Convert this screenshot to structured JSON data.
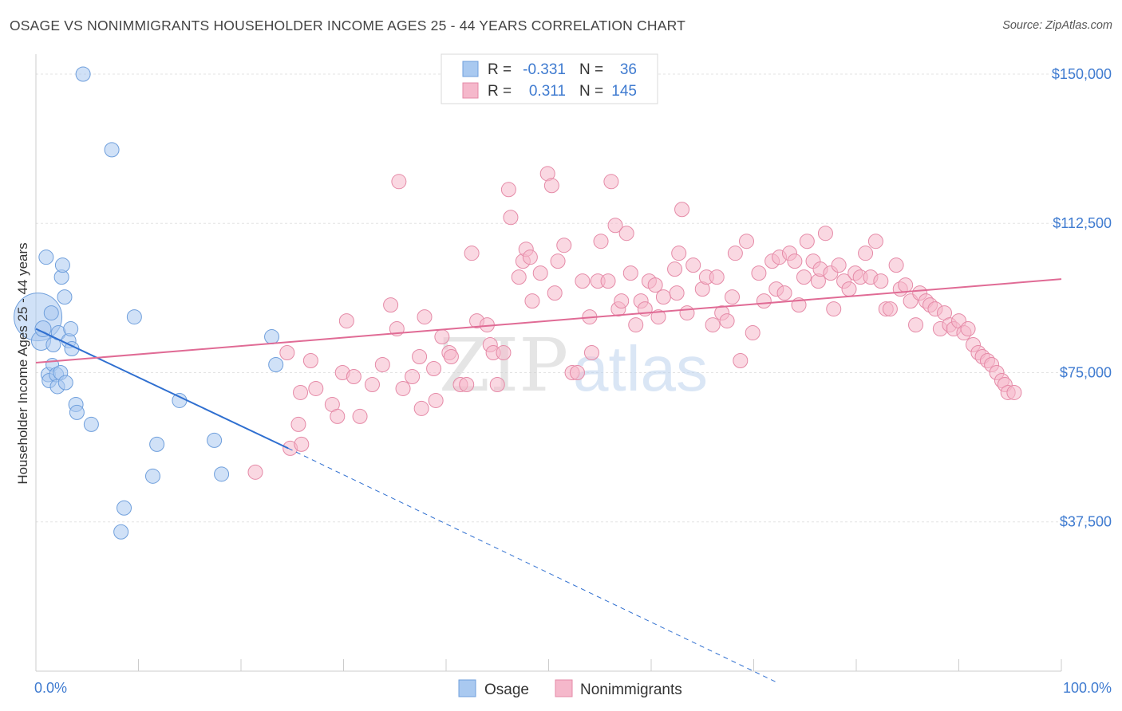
{
  "title": "OSAGE VS NONIMMIGRANTS HOUSEHOLDER INCOME AGES 25 - 44 YEARS CORRELATION CHART",
  "source": "Source: ZipAtlas.com",
  "watermark": {
    "zip": "ZIP",
    "atlas": "atlas"
  },
  "legend": {
    "rows": [
      {
        "r_label": "R =",
        "r_value": "-0.331",
        "n_label": "N =",
        "n_value": "36",
        "color": "#a9c9f0"
      },
      {
        "r_label": "R =",
        "r_value": "0.311",
        "n_label": "N =",
        "n_value": "145",
        "color": "#f5b8cb"
      }
    ]
  },
  "bottom_legend": [
    {
      "label": "Osage",
      "color": "#a9c9f0"
    },
    {
      "label": "Nonimmigrants",
      "color": "#f5b8cb"
    }
  ],
  "chart_data": {
    "type": "scatter",
    "title": "OSAGE VS NONIMMIGRANTS HOUSEHOLDER INCOME AGES 25 - 44 YEARS CORRELATION CHART",
    "xlabel": "",
    "ylabel": "Householder Income Ages 25 - 44 years",
    "xlim": [
      0,
      100
    ],
    "ylim": [
      0,
      153000
    ],
    "x_tick_labels": [
      "0.0%",
      "100.0%"
    ],
    "y_ticks": [
      37500,
      75000,
      112500,
      150000
    ],
    "y_tick_labels": [
      "$37,500",
      "$75,000",
      "$112,500",
      "$150,000"
    ],
    "grid": true,
    "series": [
      {
        "name": "Osage",
        "color": "#a9c9f0",
        "stroke": "#6f9fdc",
        "trend_color": "#2f6fd0",
        "trend": {
          "x0": 0,
          "y0": 86000,
          "x1": 24.6,
          "y1": 56000,
          "dash_x1": 72.4,
          "dash_y1": -3000
        },
        "points": [
          [
            0.2,
            89000,
            30
          ],
          [
            0.5,
            83000,
            12
          ],
          [
            0.7,
            86000,
            10
          ],
          [
            1.0,
            104000,
            9
          ],
          [
            1.2,
            74500,
            9
          ],
          [
            1.3,
            73000,
            9
          ],
          [
            1.5,
            90000,
            9
          ],
          [
            1.6,
            77000,
            8
          ],
          [
            1.7,
            82000,
            9
          ],
          [
            2.0,
            74500,
            9
          ],
          [
            2.1,
            71500,
            9
          ],
          [
            2.2,
            85000,
            9
          ],
          [
            2.4,
            75000,
            9
          ],
          [
            2.5,
            99000,
            9
          ],
          [
            2.6,
            102000,
            9
          ],
          [
            2.8,
            94000,
            9
          ],
          [
            2.9,
            72500,
            9
          ],
          [
            3.2,
            83000,
            9
          ],
          [
            3.4,
            86000,
            9
          ],
          [
            3.5,
            81000,
            9
          ],
          [
            3.9,
            67000,
            9
          ],
          [
            4.0,
            65000,
            9
          ],
          [
            4.6,
            150000,
            9
          ],
          [
            5.4,
            62000,
            9
          ],
          [
            7.4,
            131000,
            9
          ],
          [
            8.3,
            35000,
            9
          ],
          [
            8.6,
            41000,
            9
          ],
          [
            9.6,
            89000,
            9
          ],
          [
            11.4,
            49000,
            9
          ],
          [
            11.8,
            57000,
            9
          ],
          [
            14.0,
            68000,
            9
          ],
          [
            17.4,
            58000,
            9
          ],
          [
            18.1,
            49500,
            9
          ],
          [
            23.0,
            84000,
            9
          ],
          [
            23.4,
            77000,
            9
          ]
        ]
      },
      {
        "name": "Nonimmigrants",
        "color": "#f5b8cb",
        "stroke": "#e58aa7",
        "trend_color": "#e06b95",
        "trend": {
          "x0": 0,
          "y0": 77500,
          "x1": 100,
          "y1": 98500
        },
        "points": [
          [
            21.4,
            50000
          ],
          [
            24.8,
            56000
          ],
          [
            25.9,
            57000
          ],
          [
            25.6,
            62000
          ],
          [
            24.5,
            80000
          ],
          [
            25.8,
            70000
          ],
          [
            26.8,
            78000
          ],
          [
            27.3,
            71000
          ],
          [
            28.9,
            67000
          ],
          [
            29.4,
            64000
          ],
          [
            29.9,
            75000
          ],
          [
            31.0,
            74000
          ],
          [
            30.3,
            88000
          ],
          [
            31.6,
            64000
          ],
          [
            32.8,
            72000
          ],
          [
            33.8,
            77000
          ],
          [
            34.6,
            92000
          ],
          [
            35.2,
            86000
          ],
          [
            35.4,
            123000
          ],
          [
            35.8,
            71000
          ],
          [
            36.7,
            74000
          ],
          [
            37.4,
            79000
          ],
          [
            37.6,
            66000
          ],
          [
            37.9,
            89000
          ],
          [
            38.8,
            76000
          ],
          [
            39.0,
            68000
          ],
          [
            39.6,
            84000
          ],
          [
            40.3,
            80000
          ],
          [
            40.5,
            79000
          ],
          [
            41.4,
            72000
          ],
          [
            42.0,
            72000
          ],
          [
            42.5,
            105000
          ],
          [
            43.0,
            88000
          ],
          [
            44.0,
            87000
          ],
          [
            44.3,
            82000
          ],
          [
            44.6,
            80000
          ],
          [
            45.0,
            72000
          ],
          [
            45.6,
            80000
          ],
          [
            46.1,
            121000
          ],
          [
            46.3,
            114000
          ],
          [
            47.1,
            99000
          ],
          [
            47.5,
            103000
          ],
          [
            47.8,
            106000
          ],
          [
            48.2,
            104000
          ],
          [
            48.4,
            93000
          ],
          [
            49.2,
            100000
          ],
          [
            49.9,
            125000
          ],
          [
            50.3,
            122000
          ],
          [
            50.6,
            95000
          ],
          [
            50.9,
            103000
          ],
          [
            51.5,
            107000
          ],
          [
            52.3,
            75000
          ],
          [
            52.8,
            75000
          ],
          [
            53.3,
            98000
          ],
          [
            54.0,
            89000
          ],
          [
            54.2,
            80000
          ],
          [
            54.8,
            98000
          ],
          [
            55.1,
            108000
          ],
          [
            55.8,
            98000
          ],
          [
            56.1,
            123000
          ],
          [
            56.5,
            112000
          ],
          [
            56.8,
            91000
          ],
          [
            57.1,
            93000
          ],
          [
            57.6,
            110000
          ],
          [
            58.0,
            100000
          ],
          [
            58.5,
            87000
          ],
          [
            59.0,
            93000
          ],
          [
            59.4,
            91000
          ],
          [
            59.8,
            98000
          ],
          [
            60.4,
            97000
          ],
          [
            60.7,
            89000
          ],
          [
            61.2,
            94000
          ],
          [
            62.3,
            101000
          ],
          [
            62.7,
            105000
          ],
          [
            62.5,
            95000
          ],
          [
            63.0,
            116000
          ],
          [
            63.5,
            90000
          ],
          [
            64.1,
            102000
          ],
          [
            65.0,
            96000
          ],
          [
            65.4,
            99000
          ],
          [
            66.0,
            87000
          ],
          [
            66.4,
            99000
          ],
          [
            66.9,
            90000
          ],
          [
            67.4,
            88000
          ],
          [
            67.9,
            94000
          ],
          [
            68.2,
            105000
          ],
          [
            68.7,
            78000
          ],
          [
            69.3,
            108000
          ],
          [
            69.9,
            85000
          ],
          [
            70.5,
            100000
          ],
          [
            71.0,
            93000
          ],
          [
            71.8,
            103000
          ],
          [
            72.2,
            96000
          ],
          [
            72.5,
            104000
          ],
          [
            73.0,
            95000
          ],
          [
            73.5,
            105000
          ],
          [
            74.0,
            103000
          ],
          [
            74.4,
            92000
          ],
          [
            74.9,
            99000
          ],
          [
            75.2,
            108000
          ],
          [
            75.8,
            103000
          ],
          [
            76.3,
            98000
          ],
          [
            76.5,
            101000
          ],
          [
            77.0,
            110000
          ],
          [
            77.5,
            100000
          ],
          [
            77.8,
            91000
          ],
          [
            78.3,
            102000
          ],
          [
            78.8,
            98000
          ],
          [
            79.3,
            96000
          ],
          [
            79.9,
            100000
          ],
          [
            80.4,
            99000
          ],
          [
            80.9,
            105000
          ],
          [
            81.4,
            99000
          ],
          [
            81.9,
            108000
          ],
          [
            82.4,
            98000
          ],
          [
            82.9,
            91000
          ],
          [
            83.3,
            91000
          ],
          [
            83.9,
            102000
          ],
          [
            84.3,
            96000
          ],
          [
            84.8,
            97000
          ],
          [
            85.3,
            93000
          ],
          [
            85.8,
            87000
          ],
          [
            86.2,
            95000
          ],
          [
            86.8,
            93000
          ],
          [
            87.2,
            92000
          ],
          [
            87.7,
            91000
          ],
          [
            88.2,
            86000
          ],
          [
            88.6,
            90000
          ],
          [
            89.1,
            87000
          ],
          [
            89.5,
            86000
          ],
          [
            90.0,
            88000
          ],
          [
            90.5,
            85000
          ],
          [
            90.9,
            86000
          ],
          [
            91.4,
            82000
          ],
          [
            91.9,
            80000
          ],
          [
            92.3,
            79000
          ],
          [
            92.8,
            78000
          ],
          [
            93.2,
            77000
          ],
          [
            93.7,
            75000
          ],
          [
            94.2,
            73000
          ],
          [
            94.5,
            72000
          ],
          [
            94.8,
            70000
          ],
          [
            95.4,
            70000
          ]
        ]
      }
    ]
  }
}
